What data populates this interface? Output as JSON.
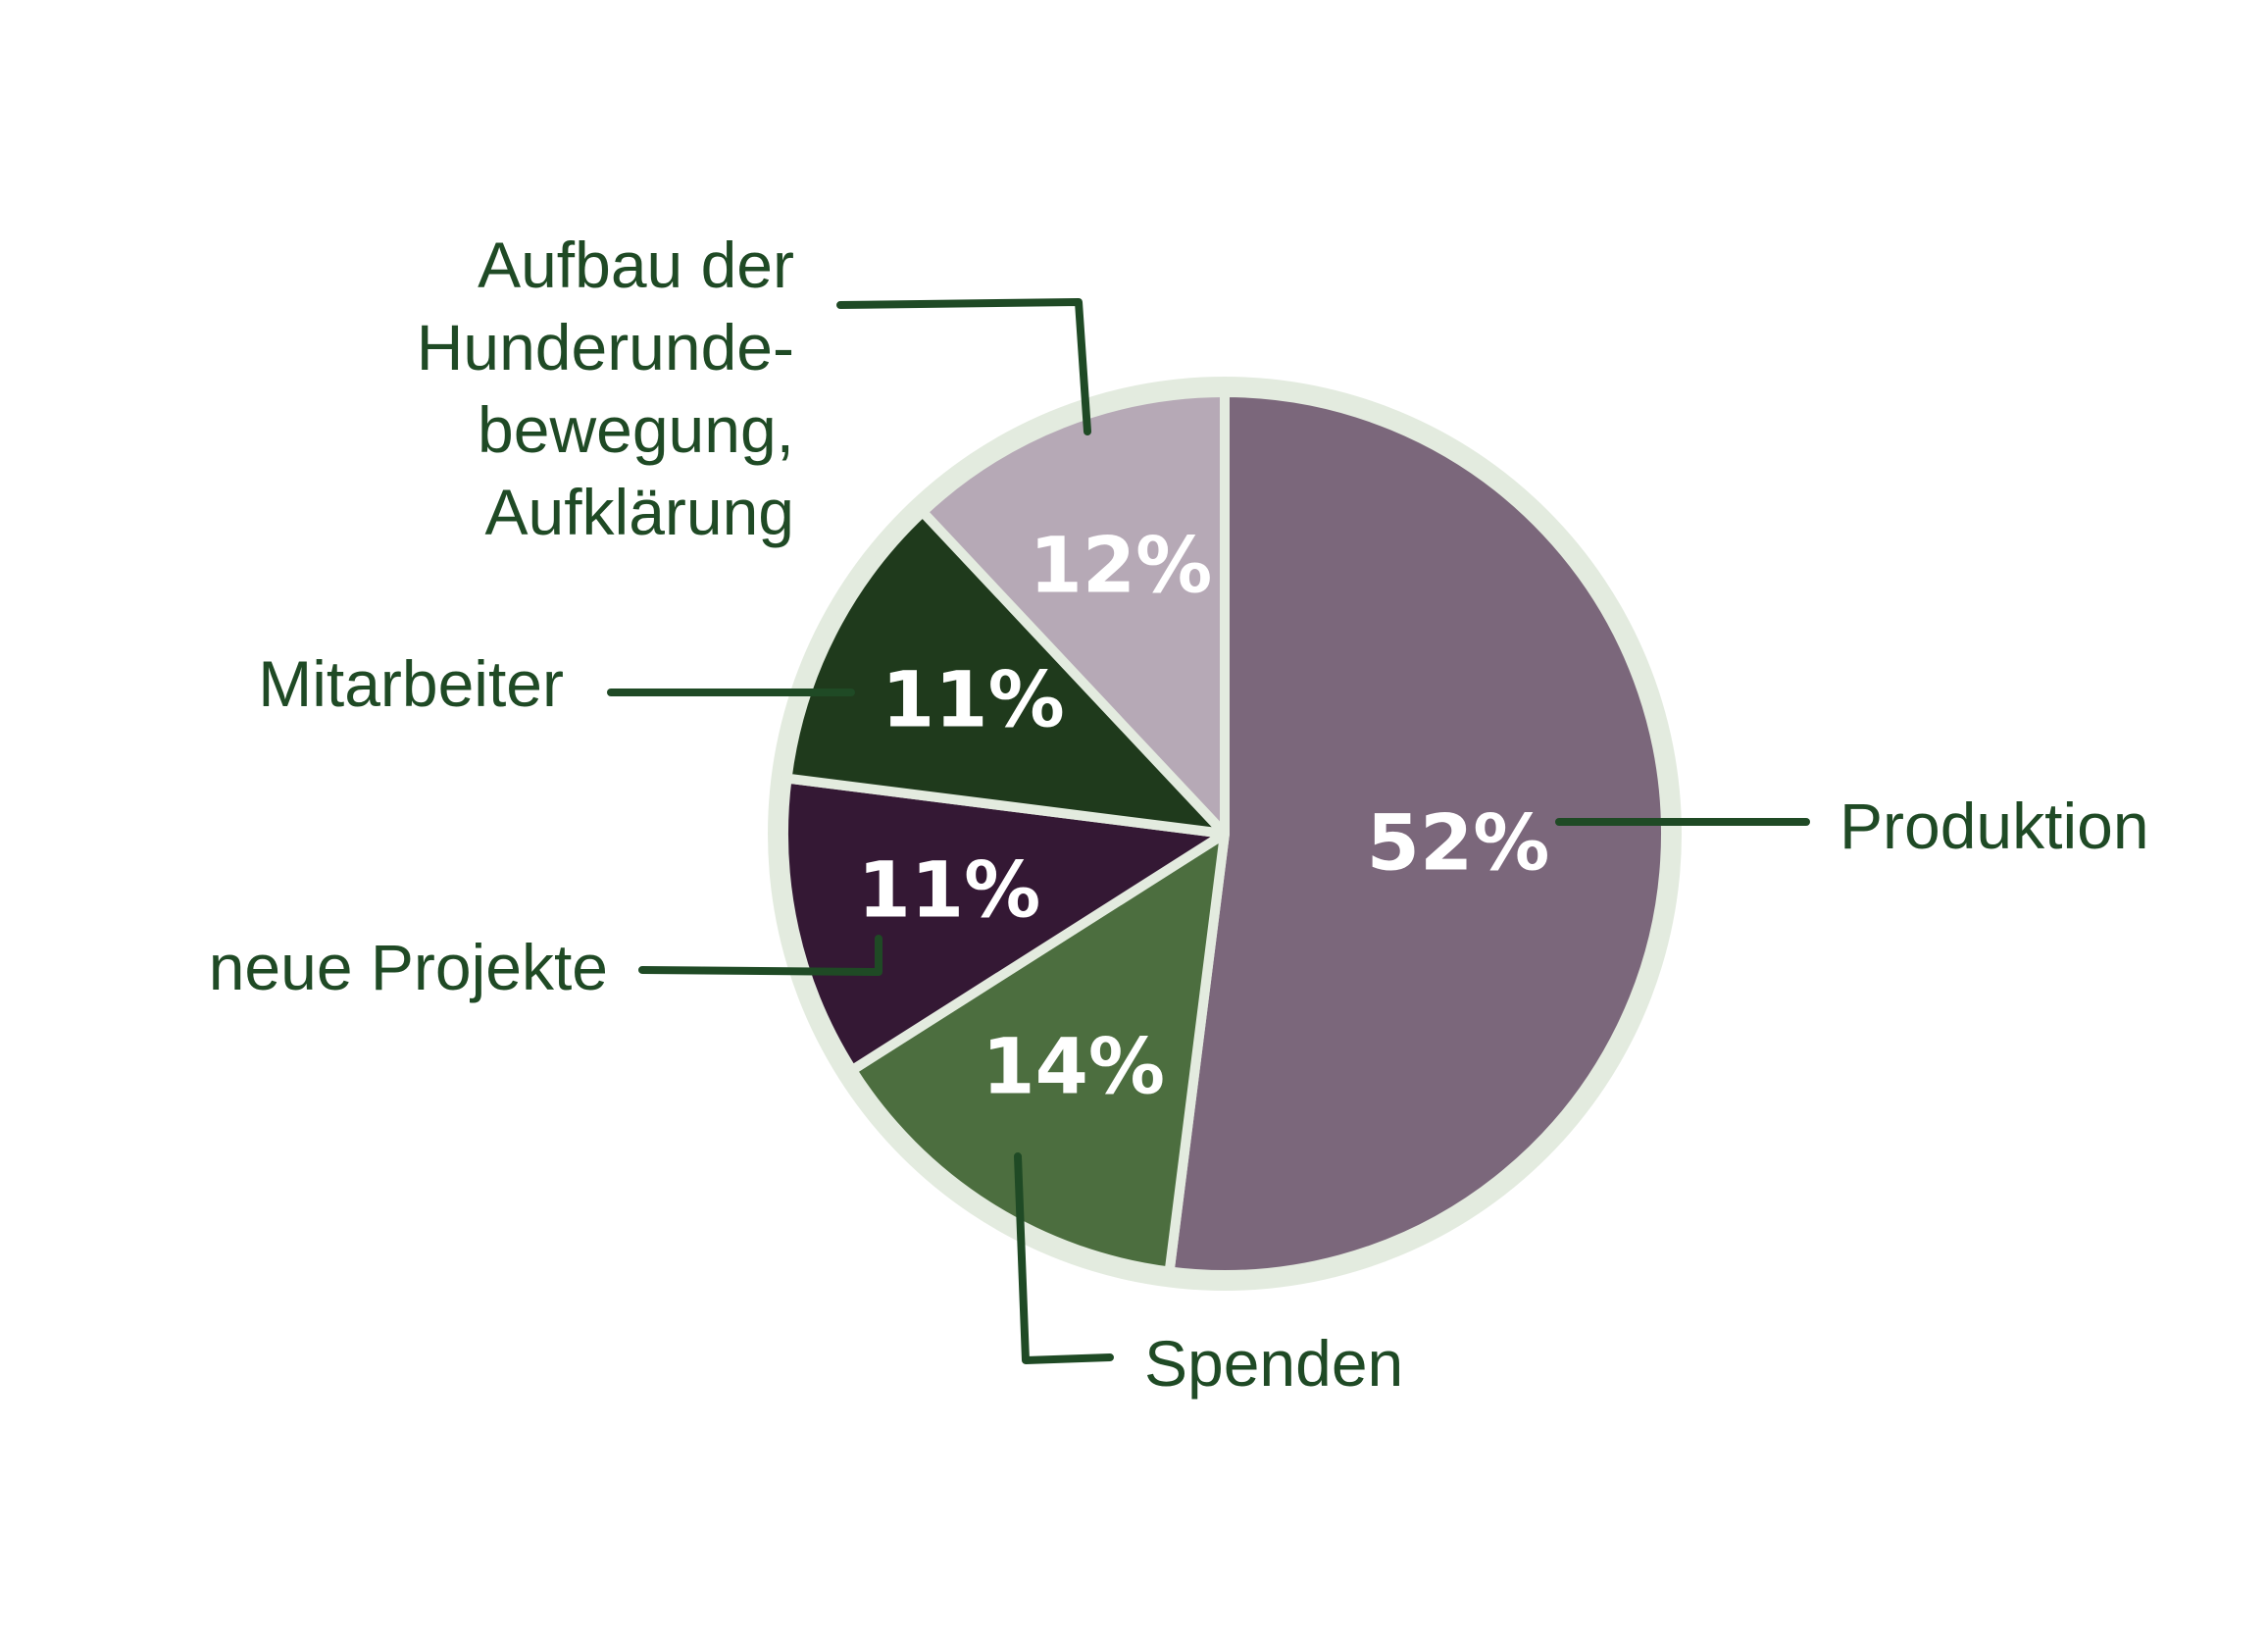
{
  "chart_data": {
    "type": "pie",
    "categories": [
      "Produktion",
      "Spenden",
      "neue Projekte",
      "Mitarbeiter",
      "Aufbau der\nHunderunde-\nbewegung,\nAufklärung"
    ],
    "values": [
      52,
      14,
      11,
      11,
      12
    ],
    "value_labels": [
      "52%",
      "14%",
      "11%",
      "11%",
      "12%"
    ],
    "colors": [
      "#7b677b",
      "#4c6e3f",
      "#341834",
      "#1f3a1c",
      "#b6a9b6"
    ]
  }
}
